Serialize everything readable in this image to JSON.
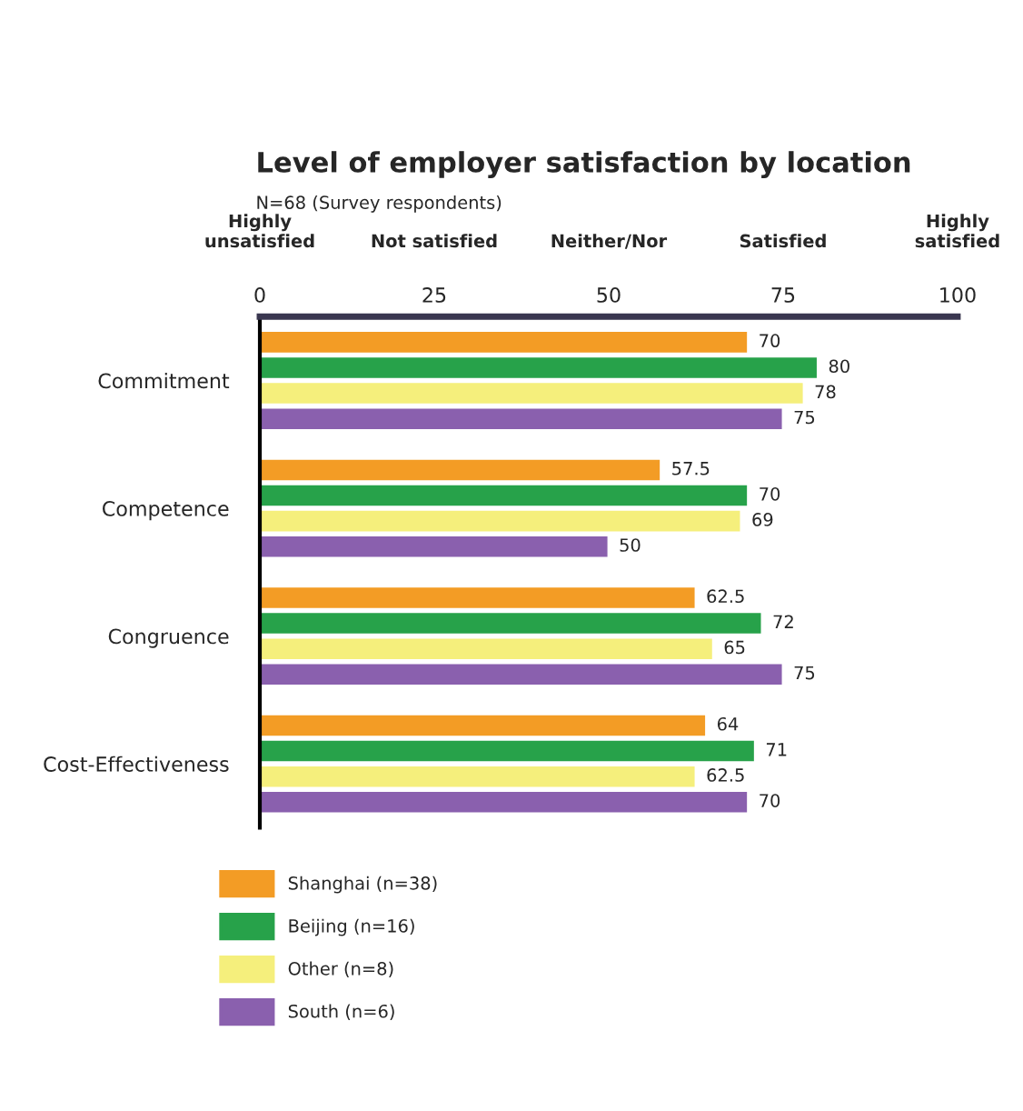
{
  "chart_data": {
    "type": "bar",
    "orientation": "horizontal",
    "title": "Level of employer satisfaction by location",
    "subtitle": "N=68 (Survey respondents)",
    "categories": [
      "Commitment",
      "Competence",
      "Congruence",
      "Cost-Effectiveness"
    ],
    "series": [
      {
        "name": "Shanghai (n=38)",
        "color": "#f39c25",
        "values": [
          70,
          57.5,
          62.5,
          64
        ]
      },
      {
        "name": "Beijing (n=16)",
        "color": "#27a24a",
        "values": [
          80,
          70,
          72,
          71
        ]
      },
      {
        "name": "Other (n=8)",
        "color": "#f5ef7c",
        "values": [
          78,
          69,
          65,
          62.5
        ]
      },
      {
        "name": "South (n=6)",
        "color": "#8a60ae",
        "values": [
          75,
          50,
          75,
          70
        ]
      }
    ],
    "xlim": [
      0,
      100
    ],
    "xticks": [
      0,
      25,
      50,
      75,
      100
    ],
    "annotations": [
      "Highly\nunsatisfied",
      "Not satisfied",
      "Neither/Nor",
      "Satisfied",
      "Highly\nsatisfied"
    ],
    "data_labels": true,
    "grid": false,
    "legend": "bottom left"
  }
}
